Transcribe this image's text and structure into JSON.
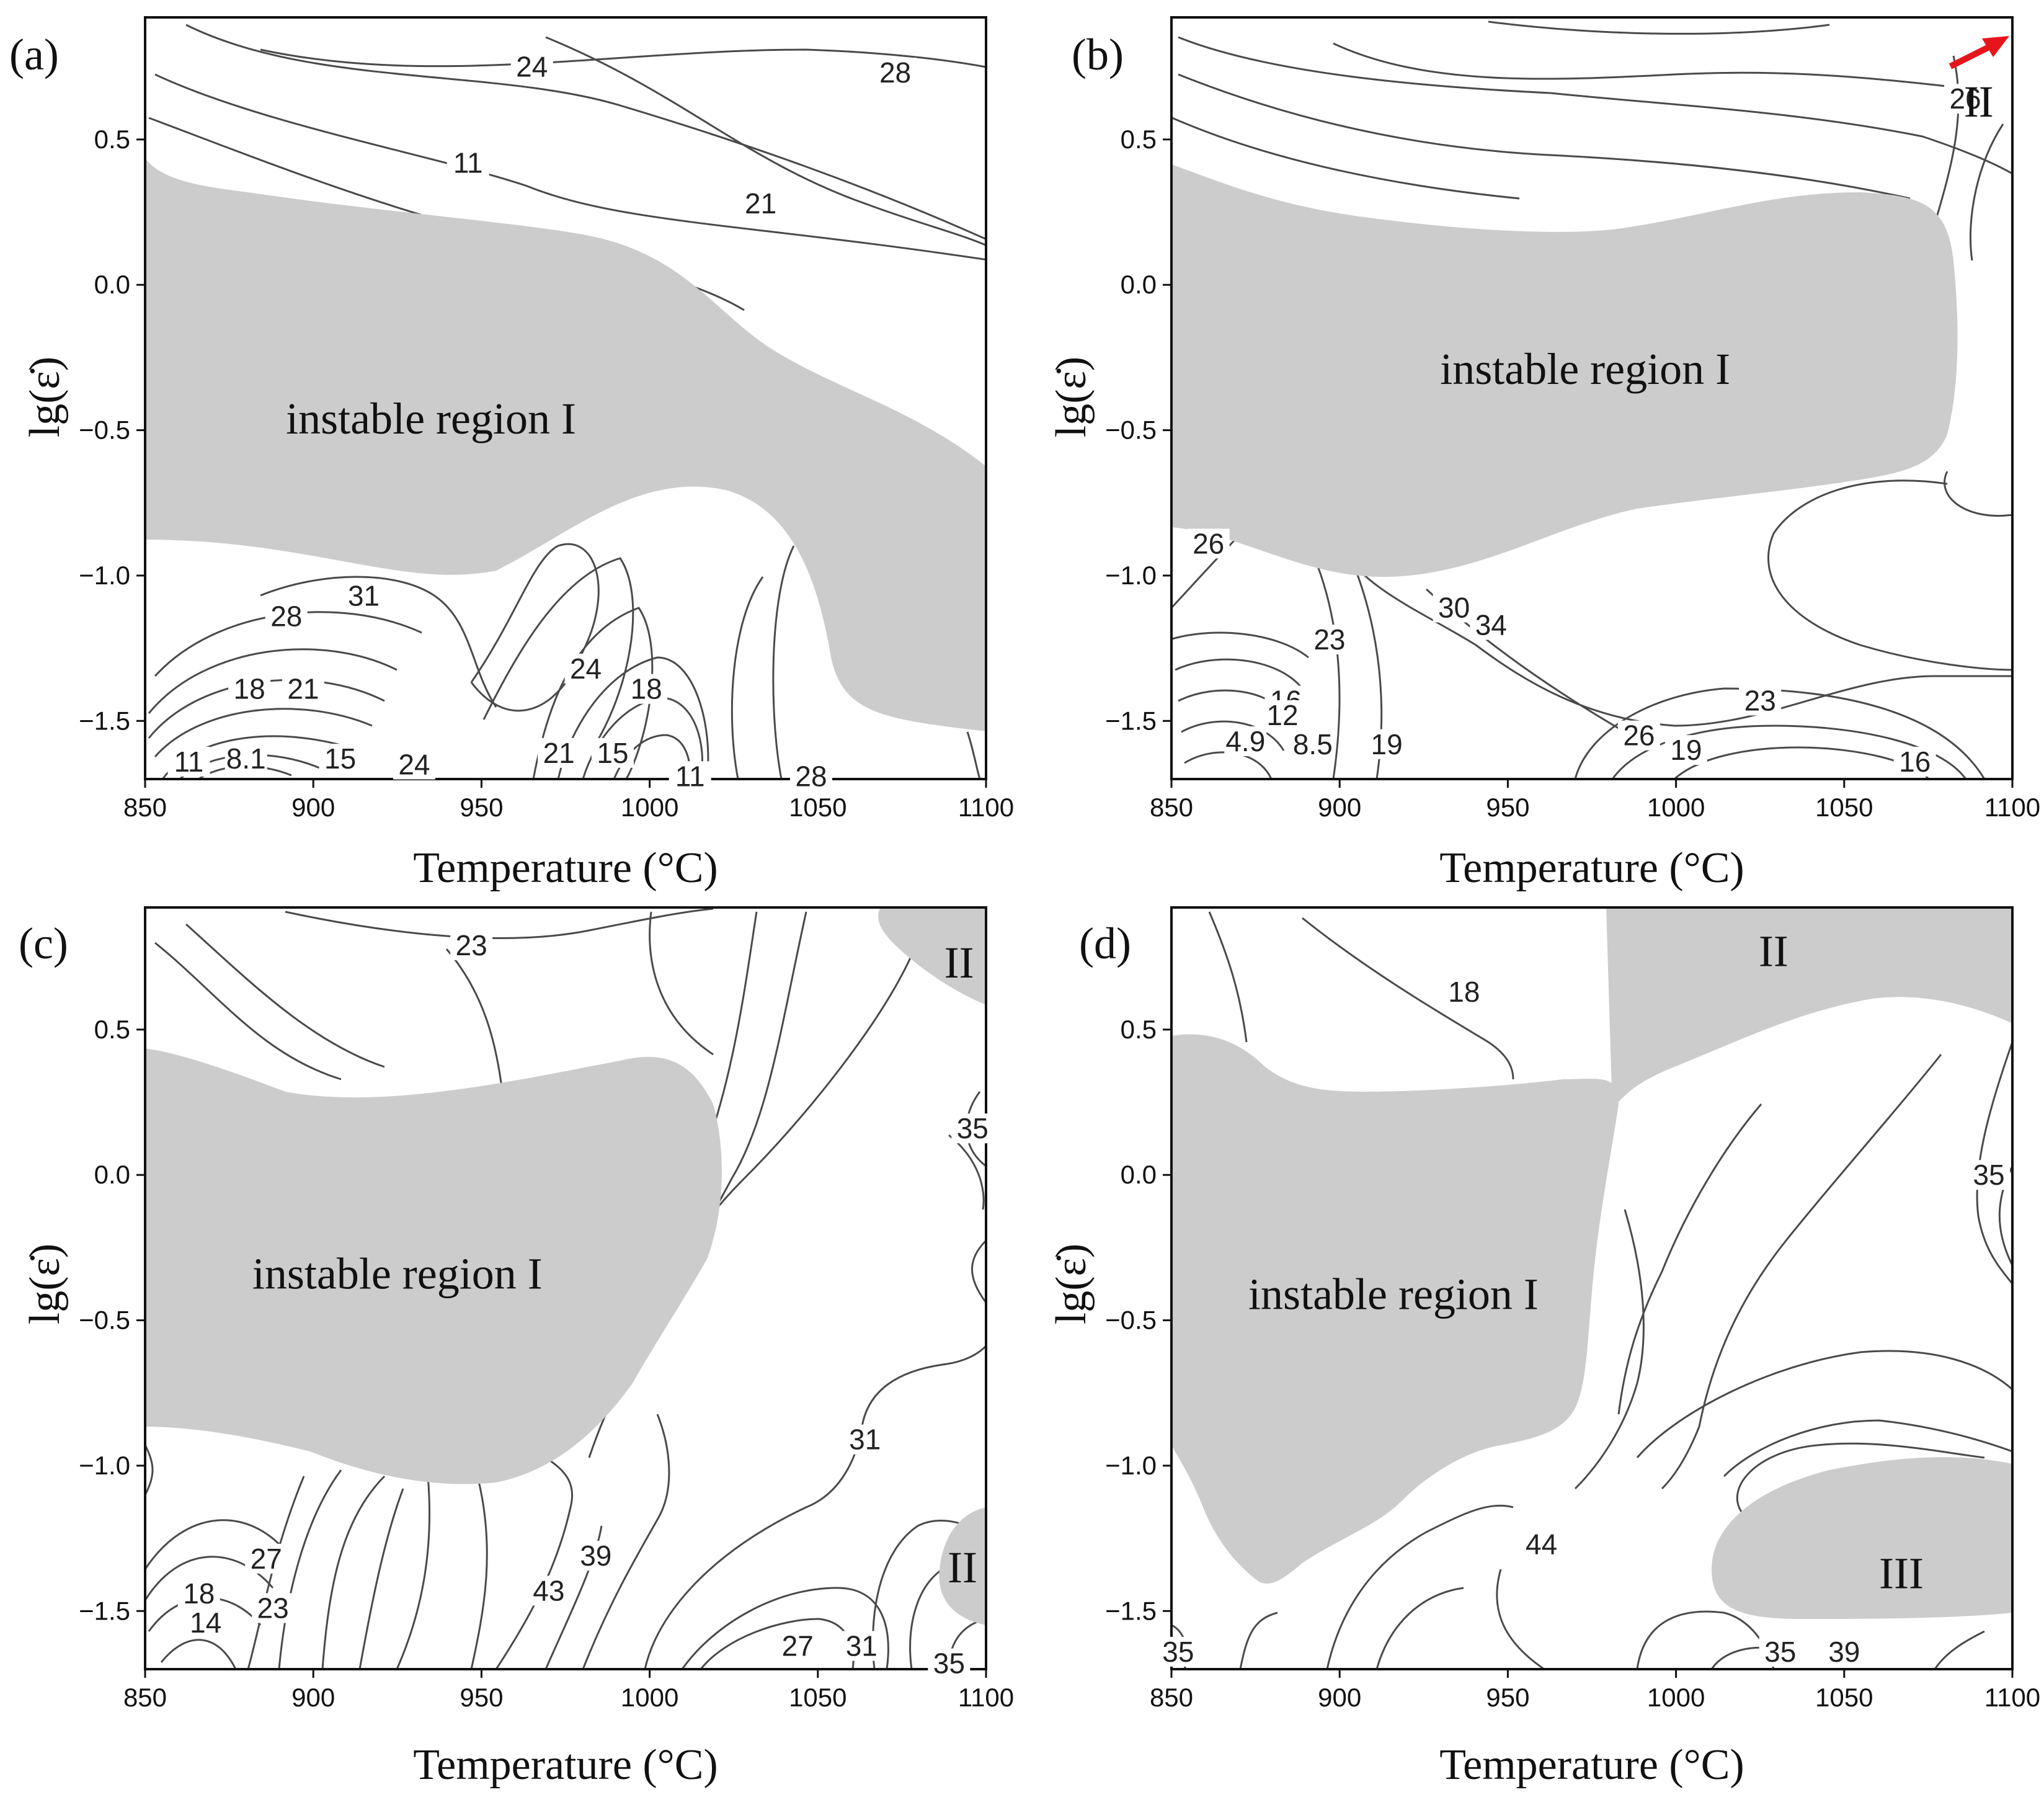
{
  "figure": {
    "region_color": "#cccccc",
    "contour_color": "#4a4a4a",
    "arrow_color": "#e8141c"
  },
  "chart_data": [
    {
      "type": "contour",
      "panel_label": "(a)",
      "xlabel": "Temperature (°C)",
      "ylabel": "lg(ε̇)",
      "xlim": [
        850,
        1100
      ],
      "ylim": [
        -1.7,
        0.92
      ],
      "x_ticks": [
        "850",
        "900",
        "950",
        "1000",
        "1050",
        "1100"
      ],
      "y_ticks": [
        "0.5",
        "0.0",
        "−0.5",
        "−1.0",
        "−1.5"
      ],
      "contour_labels": [
        {
          "text": "24",
          "x": 965,
          "y": 0.75
        },
        {
          "text": "28",
          "x": 1073,
          "y": 0.73
        },
        {
          "text": "11",
          "x": 946,
          "y": 0.42
        },
        {
          "text": "21",
          "x": 1033,
          "y": 0.28
        },
        {
          "text": "31",
          "x": 915,
          "y": -1.07
        },
        {
          "text": "28",
          "x": 892,
          "y": -1.14
        },
        {
          "text": "24",
          "x": 981,
          "y": -1.32
        },
        {
          "text": "18",
          "x": 999,
          "y": -1.39
        },
        {
          "text": "18",
          "x": 881,
          "y": -1.39
        },
        {
          "text": "21",
          "x": 897,
          "y": -1.39
        },
        {
          "text": "11",
          "x": 863,
          "y": -1.64
        },
        {
          "text": "8.1",
          "x": 880,
          "y": -1.63
        },
        {
          "text": "15",
          "x": 908,
          "y": -1.63
        },
        {
          "text": "24",
          "x": 930,
          "y": -1.65
        },
        {
          "text": "21",
          "x": 973,
          "y": -1.61
        },
        {
          "text": "15",
          "x": 989,
          "y": -1.61
        },
        {
          "text": "11",
          "x": 1012,
          "y": -1.69
        },
        {
          "text": "28",
          "x": 1048,
          "y": -1.69
        }
      ],
      "regions": [
        {
          "label": "instable region I",
          "x": 935,
          "y": -0.46
        }
      ],
      "arrow": false
    },
    {
      "type": "contour",
      "panel_label": "(b)",
      "xlabel": "Temperature (°C)",
      "ylabel": "lg(ε̇)",
      "xlim": [
        850,
        1100
      ],
      "ylim": [
        -1.7,
        0.92
      ],
      "x_ticks": [
        "850",
        "900",
        "950",
        "1000",
        "1050",
        "1100"
      ],
      "y_ticks": [
        "0.5",
        "0.0",
        "−0.5",
        "−1.0",
        "−1.5"
      ],
      "contour_labels": [
        {
          "text": "26",
          "x": 1086,
          "y": 0.64
        },
        {
          "text": "26",
          "x": 861,
          "y": -0.89
        },
        {
          "text": "30",
          "x": 934,
          "y": -1.11
        },
        {
          "text": "34",
          "x": 945,
          "y": -1.17
        },
        {
          "text": "23",
          "x": 897,
          "y": -1.22
        },
        {
          "text": "16",
          "x": 884,
          "y": -1.43
        },
        {
          "text": "12",
          "x": 883,
          "y": -1.48
        },
        {
          "text": "23",
          "x": 1025,
          "y": -1.43
        },
        {
          "text": "26",
          "x": 989,
          "y": -1.55
        },
        {
          "text": "19",
          "x": 1003,
          "y": -1.6
        },
        {
          "text": "4.9",
          "x": 872,
          "y": -1.57
        },
        {
          "text": "8.5",
          "x": 892,
          "y": -1.58
        },
        {
          "text": "19",
          "x": 914,
          "y": -1.58
        },
        {
          "text": "16",
          "x": 1071,
          "y": -1.64
        }
      ],
      "regions": [
        {
          "label": "instable region I",
          "x": 973,
          "y": -0.29
        },
        {
          "label": "II",
          "x": 1090,
          "y": 0.63
        }
      ],
      "arrow": true
    },
    {
      "type": "contour",
      "panel_label": "(c)",
      "xlabel": "Temperature (°C)",
      "ylabel": "lg(ε̇)",
      "xlim": [
        850,
        1100
      ],
      "ylim": [
        -1.7,
        0.92
      ],
      "x_ticks": [
        "850",
        "900",
        "950",
        "1000",
        "1050",
        "1100"
      ],
      "y_ticks": [
        "0.5",
        "0.0",
        "−0.5",
        "−1.0",
        "−1.5"
      ],
      "contour_labels": [
        {
          "text": "23",
          "x": 947,
          "y": 0.79
        },
        {
          "text": "35",
          "x": 1096,
          "y": 0.16
        },
        {
          "text": "31",
          "x": 1064,
          "y": -0.91
        },
        {
          "text": "27",
          "x": 886,
          "y": -1.32
        },
        {
          "text": "39",
          "x": 984,
          "y": -1.31
        },
        {
          "text": "43",
          "x": 970,
          "y": -1.43
        },
        {
          "text": "18",
          "x": 866,
          "y": -1.44
        },
        {
          "text": "23",
          "x": 888,
          "y": -1.49
        },
        {
          "text": "14",
          "x": 868,
          "y": -1.54
        },
        {
          "text": "27",
          "x": 1044,
          "y": -1.62
        },
        {
          "text": "31",
          "x": 1063,
          "y": -1.62
        },
        {
          "text": "35",
          "x": 1089,
          "y": -1.68
        }
      ],
      "regions": [
        {
          "label": "instable region I",
          "x": 925,
          "y": -0.34
        },
        {
          "label": "II",
          "x": 1092,
          "y": 0.73
        },
        {
          "label": "II",
          "x": 1093,
          "y": -1.35
        }
      ],
      "arrow": false
    },
    {
      "type": "contour",
      "panel_label": "(d)",
      "xlabel": "Temperature (°C)",
      "ylabel": "lg(ε̇)",
      "xlim": [
        850,
        1100
      ],
      "ylim": [
        -1.7,
        0.92
      ],
      "x_ticks": [
        "850",
        "900",
        "950",
        "1000",
        "1050",
        "1100"
      ],
      "y_ticks": [
        "0.5",
        "0.0",
        "−0.5",
        "−1.0",
        "−1.5"
      ],
      "contour_labels": [
        {
          "text": "18",
          "x": 937,
          "y": 0.63
        },
        {
          "text": "35",
          "x": 1093,
          "y": 0.0
        },
        {
          "text": "44",
          "x": 960,
          "y": -1.27
        },
        {
          "text": "35",
          "x": 852,
          "y": -1.64
        },
        {
          "text": "35",
          "x": 1031,
          "y": -1.64
        },
        {
          "text": "39",
          "x": 1050,
          "y": -1.64
        }
      ],
      "regions": [
        {
          "label": "instable region I",
          "x": 916,
          "y": -0.41
        },
        {
          "label": "II",
          "x": 1029,
          "y": 0.77
        },
        {
          "label": "III",
          "x": 1067,
          "y": -1.37
        }
      ],
      "arrow": false
    }
  ]
}
